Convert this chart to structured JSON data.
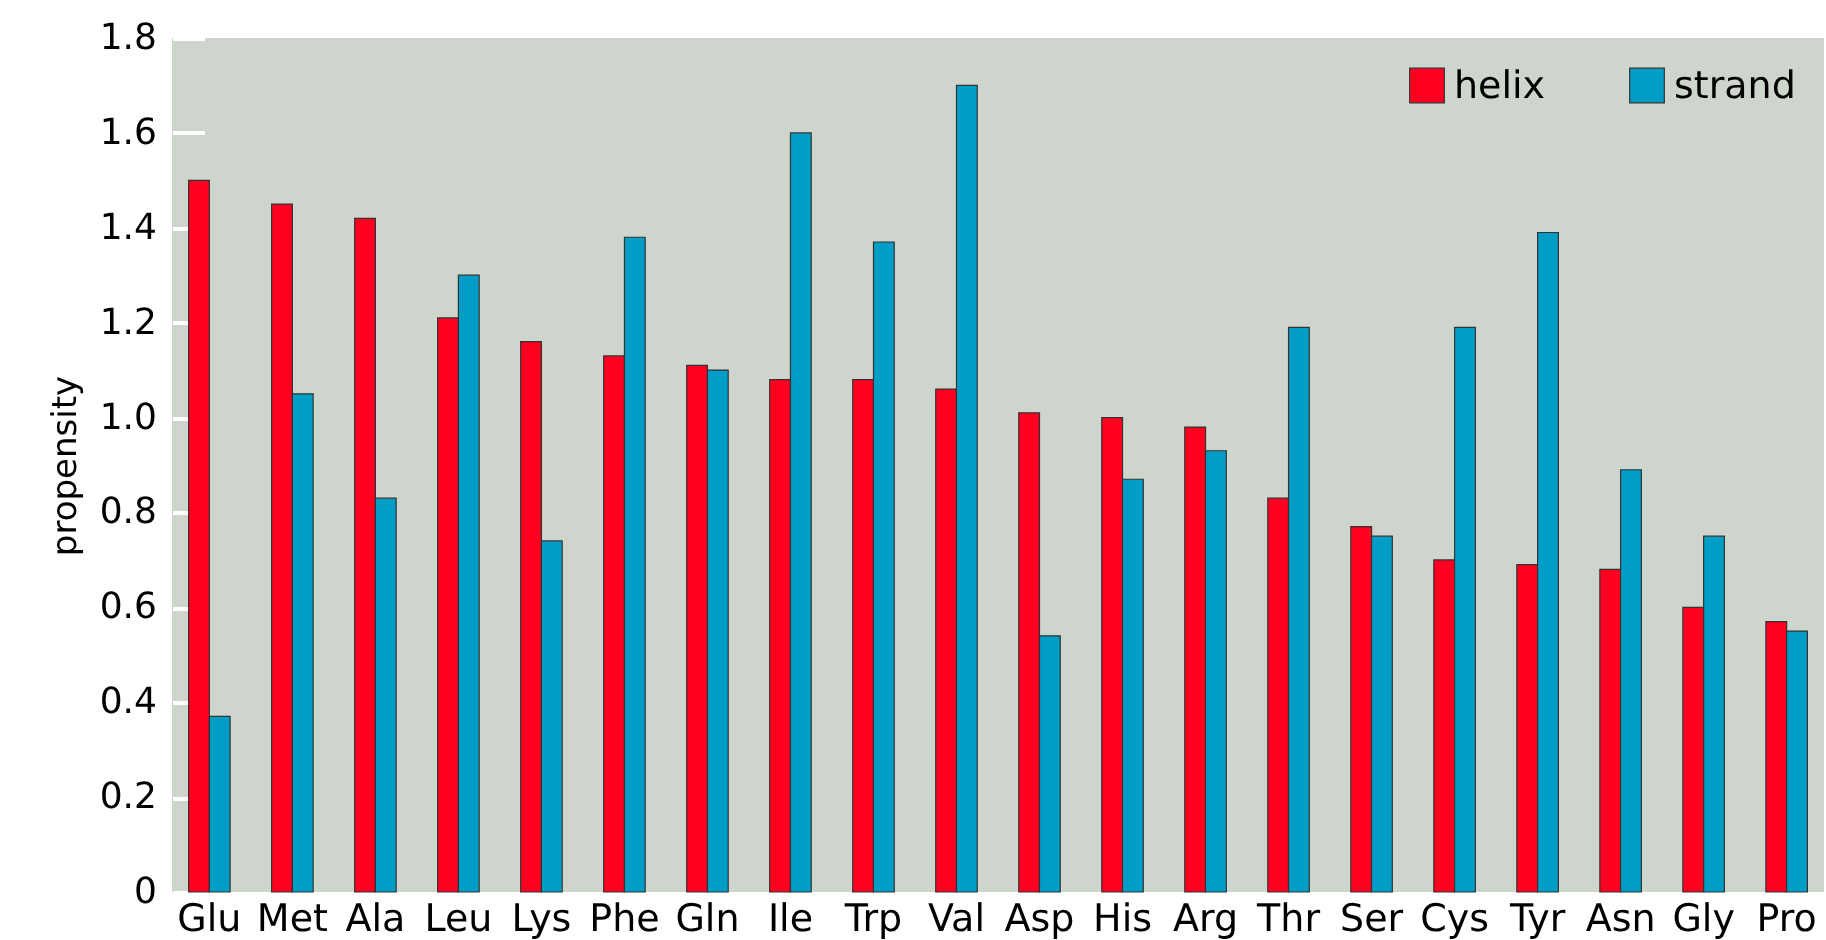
{
  "chart_data": {
    "type": "bar",
    "ylabel": "propensity",
    "categories": [
      "Glu",
      "Met",
      "Ala",
      "Leu",
      "Lys",
      "Phe",
      "Gln",
      "Ile",
      "Trp",
      "Val",
      "Asp",
      "His",
      "Arg",
      "Thr",
      "Ser",
      "Cys",
      "Tyr",
      "Asn",
      "Gly",
      "Pro"
    ],
    "series": [
      {
        "name": "helix",
        "color": "#ff0020",
        "values": [
          1.5,
          1.45,
          1.42,
          1.21,
          1.16,
          1.13,
          1.11,
          1.08,
          1.08,
          1.06,
          1.01,
          1.0,
          0.98,
          0.83,
          0.77,
          0.7,
          0.69,
          0.68,
          0.6,
          0.57
        ]
      },
      {
        "name": "strand",
        "color": "#009ec6",
        "values": [
          0.37,
          1.05,
          0.83,
          1.3,
          0.74,
          1.38,
          1.1,
          1.6,
          1.37,
          1.7,
          0.54,
          0.87,
          0.93,
          1.19,
          0.75,
          1.19,
          1.39,
          0.89,
          0.75,
          0.55
        ]
      }
    ],
    "ylim": [
      0,
      1.8
    ],
    "yticks": [
      0,
      0.2,
      0.4,
      0.6,
      0.8,
      {
        "value": 1.0,
        "label": "1.0"
      },
      1.2,
      1.4,
      1.6,
      1.8
    ],
    "grid": false,
    "legend": "top right"
  }
}
